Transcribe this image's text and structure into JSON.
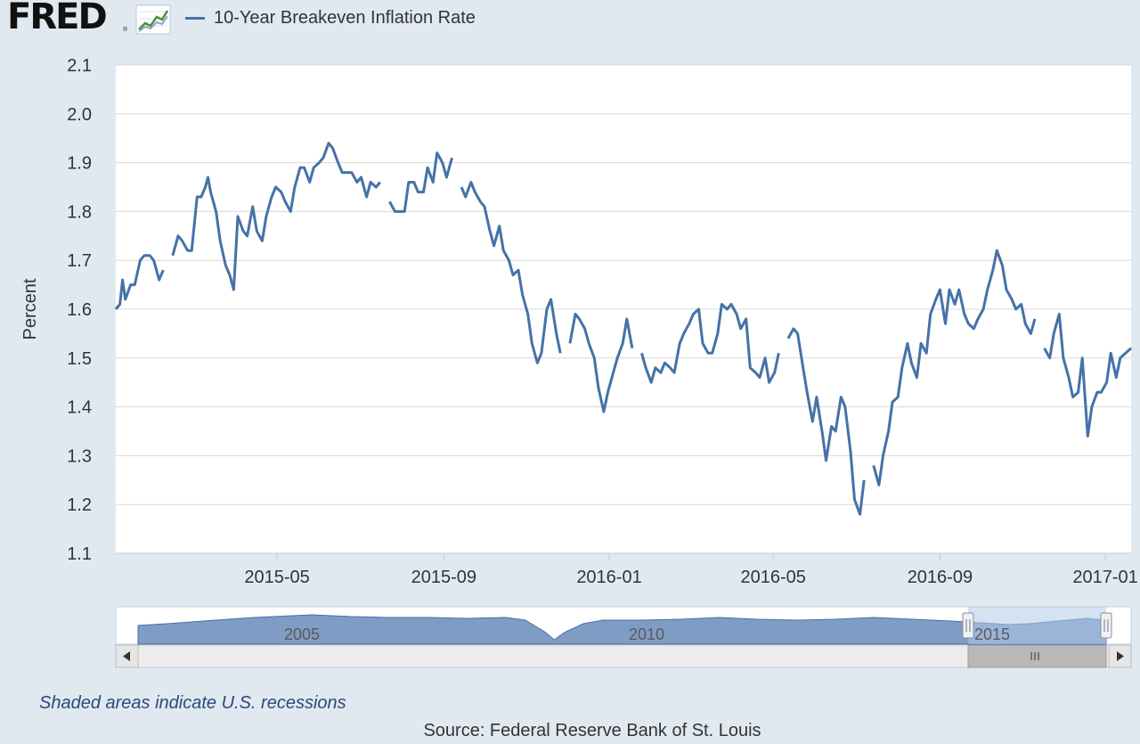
{
  "header": {
    "logo": "FRED",
    "logo_mark": "®",
    "logo_icon": "chart-line-icon"
  },
  "colors": {
    "series": "#4572a7",
    "page_background": "#e1e9f0",
    "plot_background": "#ffffff",
    "navigator_fill": "#7f9cc5",
    "navigator_selection": "#b3cbe8"
  },
  "chart_data": {
    "type": "line",
    "ylabel": "Percent",
    "xlabel": "",
    "ylim": [
      1.1,
      2.1
    ],
    "yticks": [
      "1.1",
      "1.2",
      "1.3",
      "1.4",
      "1.5",
      "1.6",
      "1.7",
      "1.8",
      "1.9",
      "2.0",
      "2.1"
    ],
    "xlim": [
      "2015-01-02",
      "2017-01-20"
    ],
    "xticks": [
      {
        "date": "2015-05-01",
        "label": "2015-05"
      },
      {
        "date": "2015-09-01",
        "label": "2015-09"
      },
      {
        "date": "2016-01-01",
        "label": "2016-01"
      },
      {
        "date": "2016-05-01",
        "label": "2016-05"
      },
      {
        "date": "2016-09-01",
        "label": "2016-09"
      },
      {
        "date": "2017-01-01",
        "label": "2017-01"
      }
    ],
    "grid": true,
    "legend_position": "top-left",
    "series": [
      {
        "name": "10-Year Breakeven Inflation Rate",
        "points": [
          [
            "2015-01-02",
            1.6
          ],
          [
            "2015-01-05",
            1.61
          ],
          [
            "2015-01-07",
            1.66
          ],
          [
            "2015-01-09",
            1.62
          ],
          [
            "2015-01-13",
            1.65
          ],
          [
            "2015-01-16",
            1.65
          ],
          [
            "2015-01-20",
            1.7
          ],
          [
            "2015-01-23",
            1.71
          ],
          [
            "2015-01-27",
            1.71
          ],
          [
            "2015-01-30",
            1.7
          ],
          [
            "2015-02-03",
            1.66
          ],
          [
            "2015-02-06",
            1.68
          ],
          [
            "2015-02-10",
            null
          ],
          [
            "2015-02-13",
            1.71
          ],
          [
            "2015-02-17",
            1.75
          ],
          [
            "2015-02-20",
            1.74
          ],
          [
            "2015-02-24",
            1.72
          ],
          [
            "2015-02-27",
            1.72
          ],
          [
            "2015-03-03",
            1.83
          ],
          [
            "2015-03-06",
            1.83
          ],
          [
            "2015-03-09",
            1.85
          ],
          [
            "2015-03-11",
            1.87
          ],
          [
            "2015-03-13",
            1.84
          ],
          [
            "2015-03-17",
            1.8
          ],
          [
            "2015-03-20",
            1.74
          ],
          [
            "2015-03-24",
            1.69
          ],
          [
            "2015-03-27",
            1.67
          ],
          [
            "2015-03-30",
            1.64
          ],
          [
            "2015-04-02",
            1.79
          ],
          [
            "2015-04-06",
            1.76
          ],
          [
            "2015-04-09",
            1.75
          ],
          [
            "2015-04-13",
            1.81
          ],
          [
            "2015-04-16",
            1.76
          ],
          [
            "2015-04-20",
            1.74
          ],
          [
            "2015-04-23",
            1.79
          ],
          [
            "2015-04-27",
            1.83
          ],
          [
            "2015-04-30",
            1.85
          ],
          [
            "2015-05-04",
            1.84
          ],
          [
            "2015-05-07",
            1.82
          ],
          [
            "2015-05-11",
            1.8
          ],
          [
            "2015-05-14",
            1.85
          ],
          [
            "2015-05-18",
            1.89
          ],
          [
            "2015-05-21",
            1.89
          ],
          [
            "2015-05-25",
            1.86
          ],
          [
            "2015-05-28",
            1.89
          ],
          [
            "2015-06-01",
            1.9
          ],
          [
            "2015-06-04",
            1.91
          ],
          [
            "2015-06-08",
            1.94
          ],
          [
            "2015-06-11",
            1.93
          ],
          [
            "2015-06-15",
            1.9
          ],
          [
            "2015-06-18",
            1.88
          ],
          [
            "2015-06-22",
            1.88
          ],
          [
            "2015-06-25",
            1.88
          ],
          [
            "2015-06-29",
            1.86
          ],
          [
            "2015-07-02",
            1.87
          ],
          [
            "2015-07-06",
            1.83
          ],
          [
            "2015-07-09",
            1.86
          ],
          [
            "2015-07-13",
            1.85
          ],
          [
            "2015-07-16",
            1.86
          ],
          [
            "2015-07-20",
            null
          ],
          [
            "2015-07-23",
            1.82
          ],
          [
            "2015-07-27",
            1.8
          ],
          [
            "2015-07-30",
            1.8
          ],
          [
            "2015-08-03",
            1.8
          ],
          [
            "2015-08-06",
            1.86
          ],
          [
            "2015-08-10",
            1.86
          ],
          [
            "2015-08-13",
            1.84
          ],
          [
            "2015-08-17",
            1.84
          ],
          [
            "2015-08-20",
            1.89
          ],
          [
            "2015-08-24",
            1.86
          ],
          [
            "2015-08-27",
            1.92
          ],
          [
            "2015-08-31",
            1.9
          ],
          [
            "2015-09-03",
            1.87
          ],
          [
            "2015-09-07",
            1.91
          ],
          [
            "2015-09-10",
            null
          ],
          [
            "2015-09-14",
            1.85
          ],
          [
            "2015-09-17",
            1.83
          ],
          [
            "2015-09-21",
            1.86
          ],
          [
            "2015-09-24",
            1.84
          ],
          [
            "2015-09-28",
            1.82
          ],
          [
            "2015-10-01",
            1.81
          ],
          [
            "2015-10-05",
            1.76
          ],
          [
            "2015-10-08",
            1.73
          ],
          [
            "2015-10-12",
            1.77
          ],
          [
            "2015-10-15",
            1.72
          ],
          [
            "2015-10-19",
            1.7
          ],
          [
            "2015-10-22",
            1.67
          ],
          [
            "2015-10-26",
            1.68
          ],
          [
            "2015-10-29",
            1.63
          ],
          [
            "2015-11-02",
            1.59
          ],
          [
            "2015-11-05",
            1.53
          ],
          [
            "2015-11-09",
            1.49
          ],
          [
            "2015-11-12",
            1.51
          ],
          [
            "2015-11-16",
            1.6
          ],
          [
            "2015-11-19",
            1.62
          ],
          [
            "2015-11-23",
            1.55
          ],
          [
            "2015-11-26",
            1.51
          ],
          [
            "2015-11-30",
            null
          ],
          [
            "2015-12-03",
            1.53
          ],
          [
            "2015-12-07",
            1.59
          ],
          [
            "2015-12-10",
            1.58
          ],
          [
            "2015-12-14",
            1.56
          ],
          [
            "2015-12-17",
            1.53
          ],
          [
            "2015-12-21",
            1.5
          ],
          [
            "2015-12-24",
            1.44
          ],
          [
            "2015-12-28",
            1.39
          ],
          [
            "2015-12-31",
            1.43
          ],
          [
            "2016-01-04",
            1.47
          ],
          [
            "2016-01-07",
            1.5
          ],
          [
            "2016-01-11",
            1.53
          ],
          [
            "2016-01-14",
            1.58
          ],
          [
            "2016-01-18",
            1.52
          ],
          [
            "2016-01-21",
            null
          ],
          [
            "2016-01-25",
            1.51
          ],
          [
            "2016-01-28",
            1.48
          ],
          [
            "2016-02-01",
            1.45
          ],
          [
            "2016-02-04",
            1.48
          ],
          [
            "2016-02-08",
            1.47
          ],
          [
            "2016-02-11",
            1.49
          ],
          [
            "2016-02-15",
            1.48
          ],
          [
            "2016-02-18",
            1.47
          ],
          [
            "2016-02-22",
            1.53
          ],
          [
            "2016-02-25",
            1.55
          ],
          [
            "2016-02-29",
            1.57
          ],
          [
            "2016-03-03",
            1.59
          ],
          [
            "2016-03-07",
            1.6
          ],
          [
            "2016-03-10",
            1.53
          ],
          [
            "2016-03-14",
            1.51
          ],
          [
            "2016-03-17",
            1.51
          ],
          [
            "2016-03-21",
            1.55
          ],
          [
            "2016-03-24",
            1.61
          ],
          [
            "2016-03-28",
            1.6
          ],
          [
            "2016-03-31",
            1.61
          ],
          [
            "2016-04-04",
            1.59
          ],
          [
            "2016-04-07",
            1.56
          ],
          [
            "2016-04-11",
            1.58
          ],
          [
            "2016-04-14",
            1.48
          ],
          [
            "2016-04-18",
            1.47
          ],
          [
            "2016-04-21",
            1.46
          ],
          [
            "2016-04-25",
            1.5
          ],
          [
            "2016-04-28",
            1.45
          ],
          [
            "2016-05-02",
            1.47
          ],
          [
            "2016-05-05",
            1.51
          ],
          [
            "2016-05-09",
            null
          ],
          [
            "2016-05-12",
            1.54
          ],
          [
            "2016-05-16",
            1.56
          ],
          [
            "2016-05-19",
            1.55
          ],
          [
            "2016-05-23",
            1.48
          ],
          [
            "2016-05-26",
            1.43
          ],
          [
            "2016-05-30",
            1.37
          ],
          [
            "2016-06-02",
            1.42
          ],
          [
            "2016-06-06",
            1.35
          ],
          [
            "2016-06-09",
            1.29
          ],
          [
            "2016-06-13",
            1.36
          ],
          [
            "2016-06-16",
            1.35
          ],
          [
            "2016-06-20",
            1.42
          ],
          [
            "2016-06-23",
            1.4
          ],
          [
            "2016-06-27",
            1.31
          ],
          [
            "2016-06-30",
            1.21
          ],
          [
            "2016-07-04",
            1.18
          ],
          [
            "2016-07-07",
            1.25
          ],
          [
            "2016-07-11",
            null
          ],
          [
            "2016-07-14",
            1.28
          ],
          [
            "2016-07-18",
            1.24
          ],
          [
            "2016-07-21",
            1.3
          ],
          [
            "2016-07-25",
            1.35
          ],
          [
            "2016-07-28",
            1.41
          ],
          [
            "2016-08-01",
            1.42
          ],
          [
            "2016-08-04",
            1.48
          ],
          [
            "2016-08-08",
            1.53
          ],
          [
            "2016-08-11",
            1.49
          ],
          [
            "2016-08-15",
            1.46
          ],
          [
            "2016-08-18",
            1.53
          ],
          [
            "2016-08-22",
            1.51
          ],
          [
            "2016-08-25",
            1.59
          ],
          [
            "2016-08-29",
            1.62
          ],
          [
            "2016-09-01",
            1.64
          ],
          [
            "2016-09-05",
            1.57
          ],
          [
            "2016-09-08",
            1.64
          ],
          [
            "2016-09-12",
            1.61
          ],
          [
            "2016-09-15",
            1.64
          ],
          [
            "2016-09-19",
            1.59
          ],
          [
            "2016-09-22",
            1.57
          ],
          [
            "2016-09-26",
            1.56
          ],
          [
            "2016-09-29",
            1.58
          ],
          [
            "2016-10-03",
            1.6
          ],
          [
            "2016-10-06",
            1.64
          ],
          [
            "2016-10-10",
            1.68
          ],
          [
            "2016-10-13",
            1.72
          ],
          [
            "2016-10-17",
            1.69
          ],
          [
            "2016-10-20",
            1.64
          ],
          [
            "2016-10-24",
            1.62
          ],
          [
            "2016-10-27",
            1.6
          ],
          [
            "2016-10-31",
            1.61
          ],
          [
            "2016-11-03",
            1.57
          ],
          [
            "2016-11-07",
            1.55
          ],
          [
            "2016-11-10",
            1.58
          ],
          [
            "2016-11-14",
            null
          ],
          [
            "2016-11-17",
            1.52
          ],
          [
            "2016-11-21",
            1.5
          ],
          [
            "2016-11-24",
            1.55
          ],
          [
            "2016-11-28",
            1.59
          ],
          [
            "2016-12-01",
            1.5
          ],
          [
            "2016-12-05",
            1.46
          ],
          [
            "2016-12-08",
            1.42
          ],
          [
            "2016-12-12",
            1.43
          ],
          [
            "2016-12-15",
            1.5
          ],
          [
            "2016-12-19",
            1.34
          ],
          [
            "2016-12-22",
            1.4
          ],
          [
            "2016-12-26",
            1.43
          ],
          [
            "2016-12-29",
            1.43
          ],
          [
            "2017-01-02",
            1.45
          ],
          [
            "2017-01-05",
            1.51
          ],
          [
            "2017-01-09",
            1.46
          ],
          [
            "2017-01-12",
            1.5
          ],
          [
            "2017-01-16",
            1.51
          ],
          [
            "2017-01-20",
            1.52
          ]
        ]
      }
    ],
    "navigator": {
      "labels": [
        "2005",
        "2010",
        "2015"
      ]
    }
  },
  "notes": {
    "recession": "Shaded areas indicate U.S. recessions",
    "source": "Source: Federal Reserve Bank of St. Louis"
  }
}
